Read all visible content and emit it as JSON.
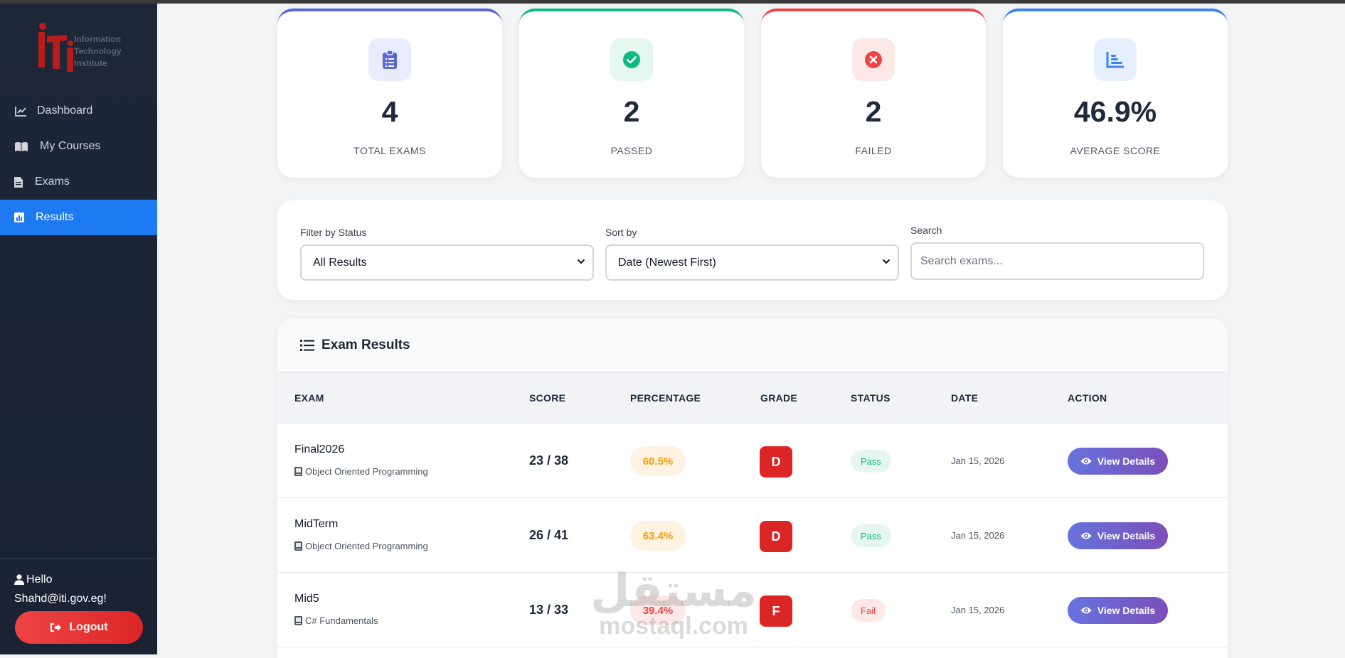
{
  "logo": {
    "lines": [
      "Information",
      "Technology",
      "Institute"
    ]
  },
  "sidebar": {
    "items": [
      {
        "label": "Dashboard",
        "icon": "chart-line-icon"
      },
      {
        "label": "My Courses",
        "icon": "book-open-icon"
      },
      {
        "label": "Exams",
        "icon": "file-icon"
      },
      {
        "label": "Results",
        "icon": "bar-chart-icon",
        "active": true
      }
    ],
    "user_greeting": "Hello",
    "user_email": "Shahd@iti.gov.eg!",
    "logout_label": "Logout"
  },
  "stats": [
    {
      "value": "4",
      "label": "TOTAL EXAMS",
      "icon": "clipboard-list-icon",
      "color": "#5a67d8"
    },
    {
      "value": "2",
      "label": "PASSED",
      "icon": "check-circle-icon",
      "color": "#10b981"
    },
    {
      "value": "2",
      "label": "FAILED",
      "icon": "x-circle-icon",
      "color": "#ef4444"
    },
    {
      "value": "46.9%",
      "label": "AVERAGE SCORE",
      "icon": "chart-bar-icon",
      "color": "#3b82f6"
    }
  ],
  "filters": {
    "status_label": "Filter by Status",
    "status_value": "All Results",
    "sort_label": "Sort by",
    "sort_value": "Date (Newest First)",
    "search_label": "Search",
    "search_placeholder": "Search exams..."
  },
  "results": {
    "title": "Exam Results",
    "columns": [
      "EXAM",
      "SCORE",
      "PERCENTAGE",
      "GRADE",
      "STATUS",
      "DATE",
      "ACTION"
    ],
    "rows": [
      {
        "name": "Final2026",
        "course": "Object Oriented Programming",
        "score": "23 / 38",
        "percentage": "60.5%",
        "grade": "D",
        "status": "Pass",
        "date": "Jan 15, 2026",
        "action": "View Details"
      },
      {
        "name": "MidTerm",
        "course": "Object Oriented Programming",
        "score": "26 / 41",
        "percentage": "63.4%",
        "grade": "D",
        "status": "Pass",
        "date": "Jan 15, 2026",
        "action": "View Details"
      },
      {
        "name": "Mid5",
        "course": "C# Fundamentals",
        "score": "13 / 33",
        "percentage": "39.4%",
        "grade": "F",
        "status": "Fail",
        "date": "Jan 15, 2026",
        "action": "View Details"
      }
    ]
  },
  "watermark": {
    "arabic": "مستقل",
    "latin": "mostaql.com"
  }
}
